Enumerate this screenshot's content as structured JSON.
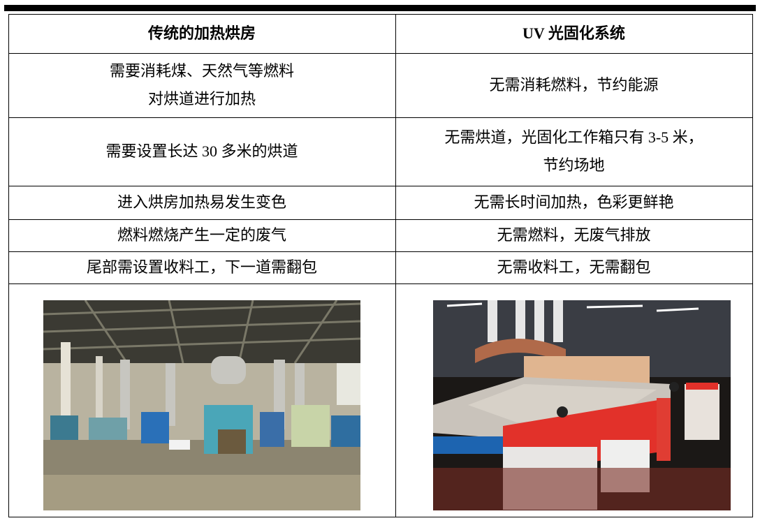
{
  "table": {
    "header": [
      "传统的加热烘房",
      "UV 光固化系统"
    ],
    "rows": [
      [
        [
          "需要消耗煤、天然气等燃料",
          "对烘道进行加热"
        ],
        [
          "无需消耗燃料，节约能源"
        ]
      ],
      [
        [
          "需要设置长达 30 多米的烘道"
        ],
        [
          "无需烘道，光固化工作箱只有 3-5 米，",
          "节约场地"
        ]
      ],
      [
        [
          "进入烘房加热易发生变色"
        ],
        [
          "无需长时间加热，色彩更鲜艳"
        ]
      ],
      [
        [
          "燃料燃烧产生一定的废气"
        ],
        [
          "无需燃料，无废气排放"
        ]
      ],
      [
        [
          "尾部需设置收料工，下一道需翻包"
        ],
        [
          "无需收料工，无需翻包"
        ]
      ]
    ]
  }
}
